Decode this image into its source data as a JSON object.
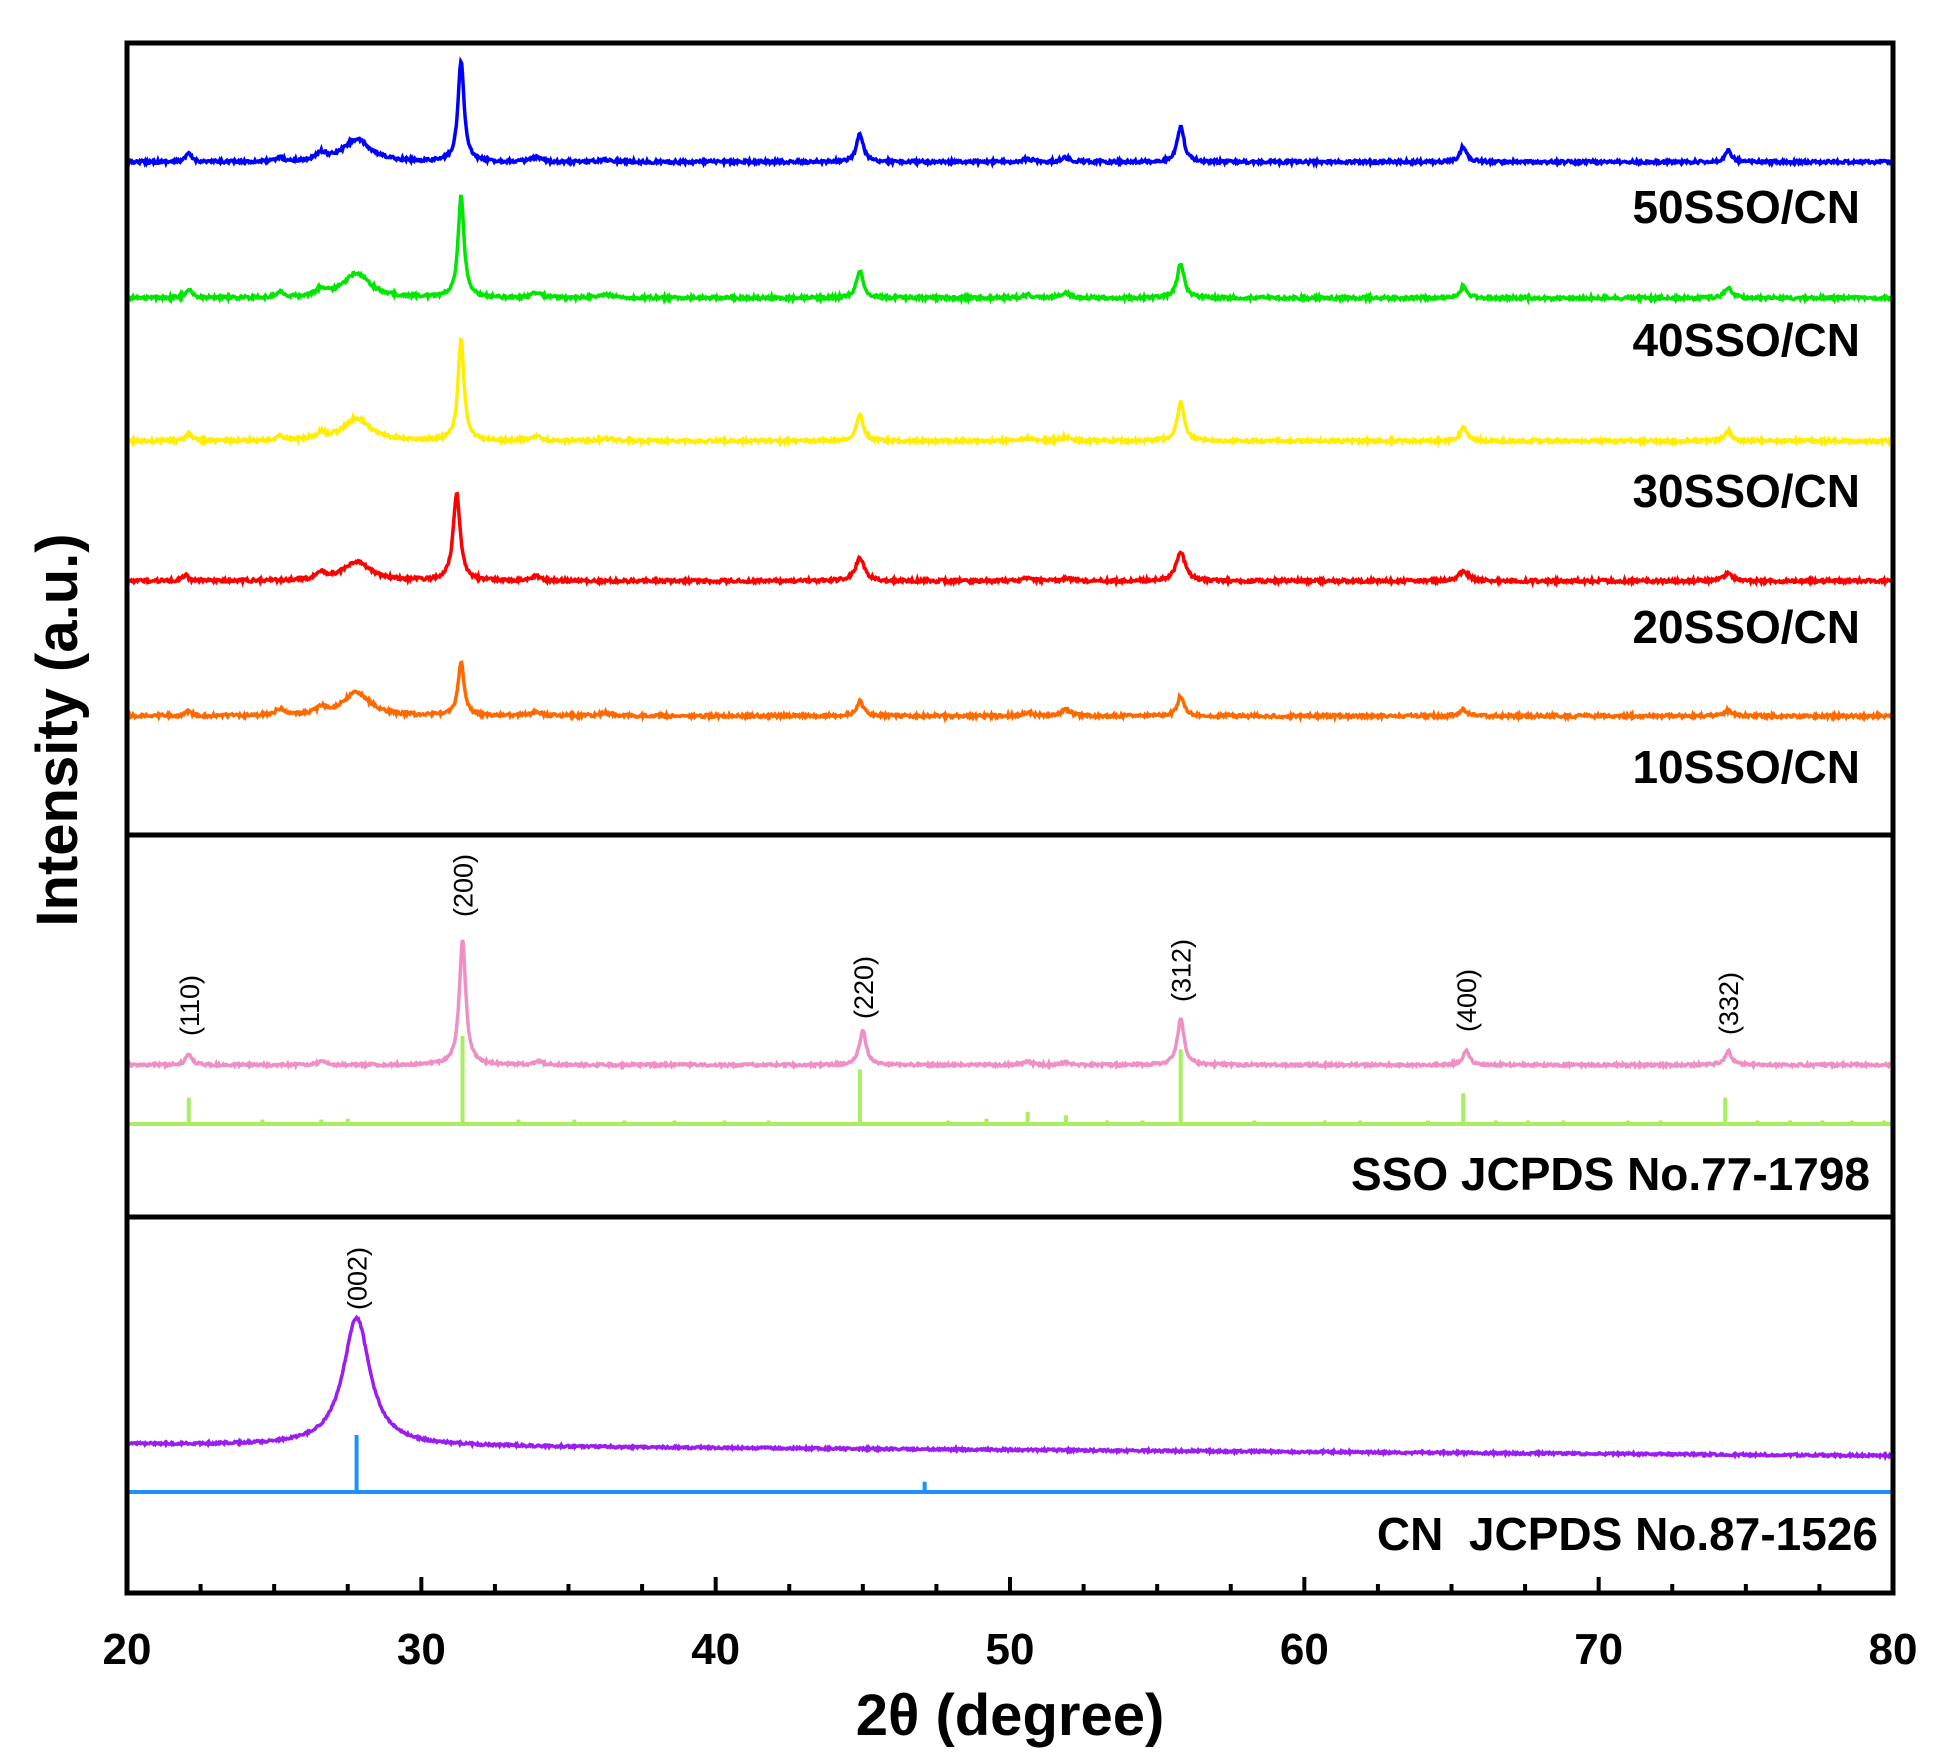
{
  "chart_data": {
    "type": "line",
    "xlabel": "2θ (degree)",
    "ylabel": "Intensity (a.u.)",
    "xlim": [
      20,
      80
    ],
    "xticks": [
      20,
      30,
      40,
      50,
      60,
      70,
      80
    ],
    "panels": [
      {
        "id": "composites",
        "series": [
          {
            "name": "50SSO/CN",
            "color": "#0000ff",
            "scale": 1.0,
            "peaks": [
              [
                22.1,
                0.08,
                0.12
              ],
              [
                25.2,
                0.04,
                0.12
              ],
              [
                26.6,
                0.07,
                0.2
              ],
              [
                27.8,
                0.22,
                0.55
              ],
              [
                31.35,
                1.0,
                0.12
              ],
              [
                33.9,
                0.04,
                0.2
              ],
              [
                36.3,
                0.02,
                0.3
              ],
              [
                44.9,
                0.27,
                0.14
              ],
              [
                50.6,
                0.03,
                0.2
              ],
              [
                51.9,
                0.04,
                0.2
              ],
              [
                55.8,
                0.35,
                0.14
              ],
              [
                65.4,
                0.15,
                0.14
              ],
              [
                74.4,
                0.11,
                0.14
              ]
            ]
          },
          {
            "name": "40SSO/CN",
            "color": "#00e600",
            "scale": 1.0,
            "peaks": [
              [
                22.1,
                0.09,
                0.12
              ],
              [
                25.2,
                0.06,
                0.12
              ],
              [
                26.6,
                0.07,
                0.2
              ],
              [
                27.8,
                0.24,
                0.55
              ],
              [
                31.35,
                1.0,
                0.12
              ],
              [
                33.9,
                0.05,
                0.2
              ],
              [
                36.3,
                0.03,
                0.3
              ],
              [
                44.9,
                0.27,
                0.14
              ],
              [
                50.6,
                0.03,
                0.2
              ],
              [
                51.9,
                0.05,
                0.2
              ],
              [
                55.8,
                0.34,
                0.14
              ],
              [
                65.4,
                0.11,
                0.14
              ],
              [
                74.4,
                0.1,
                0.14
              ]
            ]
          },
          {
            "name": "30SSO/CN",
            "color": "#ffee00",
            "scale": 1.0,
            "peaks": [
              [
                22.1,
                0.07,
                0.12
              ],
              [
                25.2,
                0.05,
                0.12
              ],
              [
                26.6,
                0.06,
                0.2
              ],
              [
                27.8,
                0.22,
                0.55
              ],
              [
                31.35,
                1.0,
                0.12
              ],
              [
                33.9,
                0.04,
                0.2
              ],
              [
                36.3,
                0.02,
                0.3
              ],
              [
                44.9,
                0.26,
                0.14
              ],
              [
                50.6,
                0.03,
                0.2
              ],
              [
                51.9,
                0.04,
                0.2
              ],
              [
                55.8,
                0.38,
                0.14
              ],
              [
                65.4,
                0.13,
                0.14
              ],
              [
                74.4,
                0.1,
                0.14
              ]
            ]
          },
          {
            "name": "20SSO/CN",
            "color": "#ff0000",
            "scale": 0.86,
            "peaks": [
              [
                22.0,
                0.06,
                0.12
              ],
              [
                26.6,
                0.08,
                0.2
              ],
              [
                27.8,
                0.22,
                0.55
              ],
              [
                31.2,
                1.0,
                0.14
              ],
              [
                33.9,
                0.05,
                0.2
              ],
              [
                44.9,
                0.26,
                0.18
              ],
              [
                50.6,
                0.03,
                0.2
              ],
              [
                51.9,
                0.03,
                0.2
              ],
              [
                55.8,
                0.33,
                0.18
              ],
              [
                65.4,
                0.11,
                0.2
              ],
              [
                74.4,
                0.08,
                0.2
              ]
            ]
          },
          {
            "name": "10SSO/CN",
            "color": "#ff6a00",
            "scale": 0.53,
            "peaks": [
              [
                22.1,
                0.08,
                0.12
              ],
              [
                25.2,
                0.12,
                0.2
              ],
              [
                26.6,
                0.12,
                0.2
              ],
              [
                27.8,
                0.44,
                0.55
              ],
              [
                31.35,
                1.0,
                0.12
              ],
              [
                33.9,
                0.08,
                0.2
              ],
              [
                36.3,
                0.05,
                0.3
              ],
              [
                44.9,
                0.27,
                0.14
              ],
              [
                50.6,
                0.06,
                0.2
              ],
              [
                51.9,
                0.12,
                0.2
              ],
              [
                55.8,
                0.37,
                0.14
              ],
              [
                65.4,
                0.12,
                0.14
              ],
              [
                74.4,
                0.1,
                0.14
              ]
            ]
          }
        ]
      },
      {
        "id": "sso-reference",
        "pattern": {
          "name": "SSO",
          "color": "#ef8fc4",
          "peaks": [
            [
              22.1,
              0.09,
              0.12
            ],
            [
              26.6,
              0.03,
              0.15
            ],
            [
              31.4,
              1.0,
              0.13
            ],
            [
              34.0,
              0.03,
              0.15
            ],
            [
              45.0,
              0.27,
              0.14
            ],
            [
              50.6,
              0.03,
              0.15
            ],
            [
              51.9,
              0.02,
              0.15
            ],
            [
              55.8,
              0.36,
              0.14
            ],
            [
              65.5,
              0.11,
              0.14
            ],
            [
              74.4,
              0.11,
              0.14
            ]
          ]
        },
        "reference": {
          "name": "SSO JCPDS No.77-1798",
          "color": "#a8ee60",
          "sticks": [
            [
              22.1,
              0.3
            ],
            [
              24.6,
              0.05
            ],
            [
              26.6,
              0.05
            ],
            [
              27.5,
              0.06
            ],
            [
              31.4,
              1.0
            ],
            [
              33.3,
              0.05
            ],
            [
              35.2,
              0.05
            ],
            [
              36.9,
              0.04
            ],
            [
              38.6,
              0.04
            ],
            [
              40.3,
              0.04
            ],
            [
              41.8,
              0.04
            ],
            [
              44.9,
              0.62
            ],
            [
              47.9,
              0.04
            ],
            [
              49.2,
              0.06
            ],
            [
              50.6,
              0.14
            ],
            [
              51.9,
              0.1
            ],
            [
              53.3,
              0.04
            ],
            [
              54.5,
              0.04
            ],
            [
              55.8,
              0.85
            ],
            [
              58.3,
              0.04
            ],
            [
              60.7,
              0.04
            ],
            [
              61.9,
              0.04
            ],
            [
              64.2,
              0.04
            ],
            [
              65.4,
              0.35
            ],
            [
              66.5,
              0.04
            ],
            [
              67.6,
              0.04
            ],
            [
              68.8,
              0.04
            ],
            [
              71.0,
              0.04
            ],
            [
              72.1,
              0.04
            ],
            [
              74.3,
              0.3
            ],
            [
              75.4,
              0.04
            ],
            [
              76.5,
              0.04
            ],
            [
              77.6,
              0.04
            ],
            [
              78.6,
              0.04
            ],
            [
              79.7,
              0.04
            ]
          ]
        },
        "annotations": [
          {
            "x": 22.1,
            "text": "(110)"
          },
          {
            "x": 31.4,
            "text": "(200)"
          },
          {
            "x": 45.0,
            "text": "(220)"
          },
          {
            "x": 55.8,
            "text": "(312)"
          },
          {
            "x": 65.5,
            "text": "(400)"
          },
          {
            "x": 74.4,
            "text": "(332)"
          }
        ]
      },
      {
        "id": "cn-reference",
        "pattern": {
          "name": "CN",
          "color": "#9a1ef2",
          "peaks": [
            [
              27.8,
              1.0,
              0.55
            ]
          ],
          "baseline_start": 0.03,
          "baseline_end": -0.06
        },
        "reference": {
          "name": "CN  JCPDS No.87-1526",
          "color": "#1e90ff",
          "sticks": [
            [
              27.8,
              1.0
            ],
            [
              26.8,
              0.02
            ],
            [
              47.1,
              0.18
            ]
          ]
        },
        "annotations": [
          {
            "x": 27.8,
            "text": "(002)"
          }
        ]
      }
    ]
  },
  "colors": {
    "frame": "#000000",
    "text": "#000000"
  }
}
